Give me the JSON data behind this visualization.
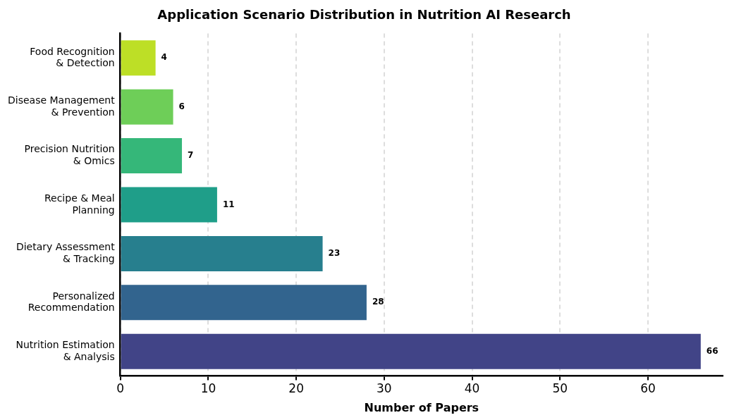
{
  "chart_data": {
    "type": "bar",
    "orientation": "horizontal",
    "title": "Application Scenario Distribution in Nutrition AI Research",
    "xlabel": "Number of Papers",
    "categories": [
      "Food Recognition\n& Detection",
      "Disease Management\n& Prevention",
      "Precision Nutrition\n& Omics",
      "Recipe & Meal\nPlanning",
      "Dietary Assessment\n& Tracking",
      "Personalized\nRecommendation",
      "Nutrition Estimation\n& Analysis"
    ],
    "values": [
      4,
      6,
      7,
      11,
      23,
      28,
      66
    ],
    "colors": [
      "#bddf26",
      "#6ece58",
      "#35b779",
      "#1f9e89",
      "#277f8e",
      "#32648e",
      "#414487"
    ],
    "xlim": [
      0,
      68.5
    ],
    "xticks": [
      0,
      10,
      20,
      30,
      40,
      50,
      60
    ],
    "grid": "x",
    "data_labels": true
  }
}
